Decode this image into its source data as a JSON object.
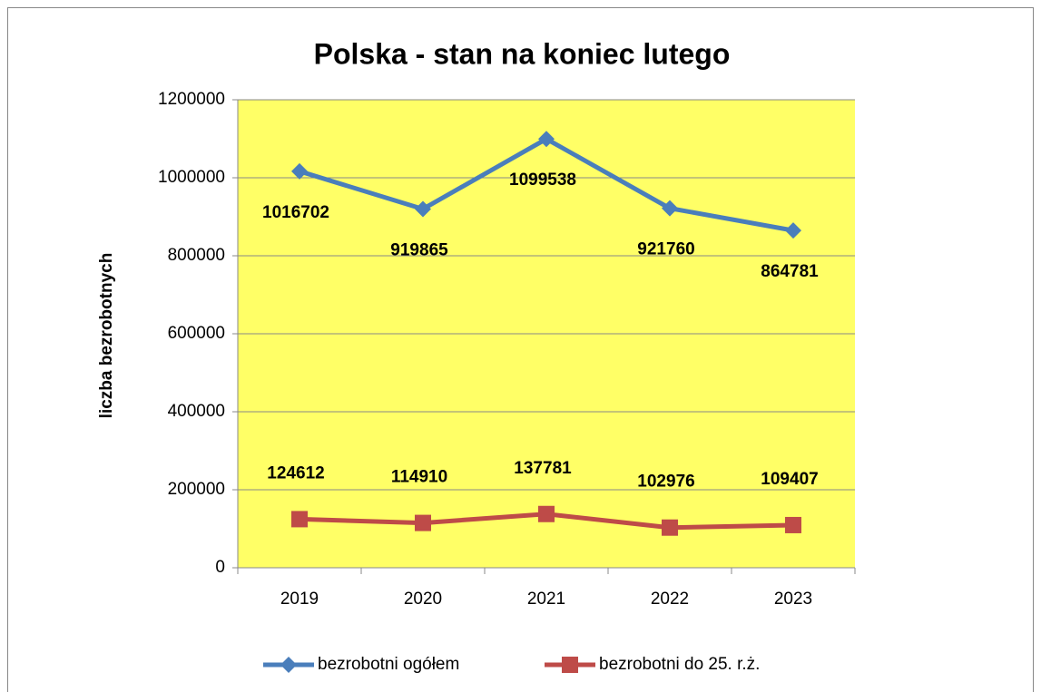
{
  "chart_data": {
    "type": "line",
    "title": "Polska - stan na koniec lutego",
    "y_label": "liczba bezrobotnych",
    "categories": [
      "2019",
      "2020",
      "2021",
      "2022",
      "2023"
    ],
    "series": [
      {
        "name": "bezrobotni ogółem",
        "color": "#4a7ebb",
        "marker": "diamond",
        "values": [
          1016702,
          919865,
          1099538,
          921760,
          864781
        ]
      },
      {
        "name": "bezrobotni do 25. r.ż.",
        "color": "#be4b48",
        "marker": "square",
        "values": [
          124612,
          114910,
          137781,
          102976,
          109407
        ]
      }
    ],
    "ylim": [
      0,
      1200000
    ],
    "yticks": [
      0,
      200000,
      400000,
      600000,
      800000,
      1000000,
      1200000
    ],
    "grid": true,
    "plot_background": "#ffff66",
    "legend": "bottom"
  }
}
